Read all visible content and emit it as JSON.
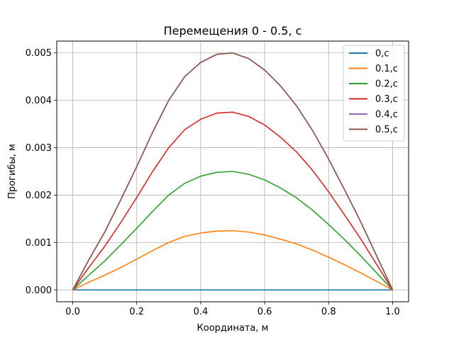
{
  "chart_data": {
    "type": "line",
    "title": "Перемещения 0 - 0.5, с",
    "xlabel": "Координата, м",
    "ylabel": "Прогибы, м",
    "xlim": [
      -0.05,
      1.05
    ],
    "ylim": [
      -0.00025,
      0.00525
    ],
    "xticks": [
      0.0,
      0.2,
      0.4,
      0.6,
      0.8,
      1.0
    ],
    "xtick_labels": [
      "0.0",
      "0.2",
      "0.4",
      "0.6",
      "0.8",
      "1.0"
    ],
    "yticks": [
      0.0,
      0.001,
      0.002,
      0.003,
      0.004,
      0.005
    ],
    "ytick_labels": [
      "0.000",
      "0.001",
      "0.002",
      "0.003",
      "0.004",
      "0.005"
    ],
    "grid": true,
    "legend_position": "upper right",
    "x": [
      0.0,
      0.05,
      0.1,
      0.15,
      0.2,
      0.25,
      0.3,
      0.35,
      0.4,
      0.45,
      0.5,
      0.55,
      0.6,
      0.65,
      0.7,
      0.75,
      0.8,
      0.85,
      0.9,
      0.95,
      1.0
    ],
    "series": [
      {
        "name": "0,с",
        "color": "#1f77b4",
        "values": [
          0,
          0,
          0,
          0,
          0,
          0,
          0,
          0,
          0,
          0,
          0,
          0,
          0,
          0,
          0,
          0,
          0,
          0,
          0,
          0,
          0
        ]
      },
      {
        "name": "0.1,с",
        "color": "#ff7f0e",
        "values": [
          0,
          0.00016,
          0.00031,
          0.00047,
          0.00065,
          0.00083,
          0.001,
          0.00113,
          0.0012,
          0.00124,
          0.00125,
          0.00122,
          0.00116,
          0.00107,
          0.00097,
          0.00084,
          0.00069,
          0.00053,
          0.00036,
          0.00018,
          0
        ]
      },
      {
        "name": "0.2,с",
        "color": "#2ca02c",
        "values": [
          0,
          0.00031,
          0.00061,
          0.00095,
          0.0013,
          0.00166,
          0.002,
          0.00225,
          0.0024,
          0.00248,
          0.0025,
          0.00244,
          0.00232,
          0.00215,
          0.00194,
          0.00168,
          0.00138,
          0.00106,
          0.00072,
          0.00036,
          0
        ]
      },
      {
        "name": "0.3,с",
        "color": "#d62728",
        "values": [
          0,
          0.00047,
          0.00092,
          0.00142,
          0.00195,
          0.0025,
          0.003,
          0.00338,
          0.0036,
          0.00373,
          0.00375,
          0.00366,
          0.00348,
          0.00322,
          0.00291,
          0.00252,
          0.00207,
          0.00158,
          0.00108,
          0.00054,
          0
        ]
      },
      {
        "name": "0.4,с",
        "color": "#9467bd",
        "values": [
          0,
          0.00063,
          0.00122,
          0.0019,
          0.0026,
          0.00333,
          0.004,
          0.0045,
          0.0048,
          0.00497,
          0.005,
          0.00488,
          0.00464,
          0.0043,
          0.00388,
          0.00336,
          0.00276,
          0.00211,
          0.00144,
          0.00072,
          0
        ]
      },
      {
        "name": "0.5,с",
        "color": "#8c564b",
        "values": [
          0,
          0.00063,
          0.00122,
          0.0019,
          0.0026,
          0.00333,
          0.004,
          0.0045,
          0.0048,
          0.00497,
          0.005,
          0.00488,
          0.00464,
          0.0043,
          0.00388,
          0.00336,
          0.00276,
          0.00211,
          0.00144,
          0.00072,
          0
        ]
      }
    ]
  }
}
